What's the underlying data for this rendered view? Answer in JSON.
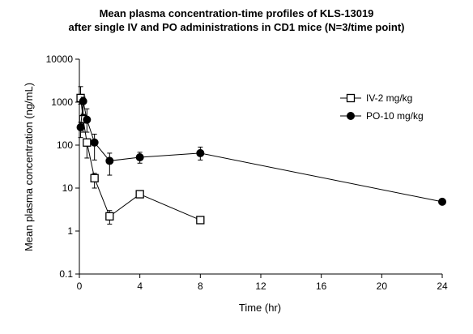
{
  "chart_data": {
    "type": "scatter",
    "title": [
      "Mean plasma concentration-time profiles of KLS-13019",
      "after single IV and PO administrations in CD1 mice (N=3/time point)"
    ],
    "xlabel": "Time (hr)",
    "ylabel": "Mean plasma concentration (ng/mL)",
    "xlim": [
      0,
      24
    ],
    "ylim": [
      0.1,
      10000
    ],
    "yscale": "log",
    "xticks": [
      0,
      4,
      8,
      12,
      16,
      20,
      24
    ],
    "xtick_labels": [
      "0",
      "4",
      "8",
      "12",
      "16",
      "20",
      "24"
    ],
    "yticks": [
      0.1,
      1,
      10,
      100,
      1000,
      10000
    ],
    "ytick_labels": [
      "0.1",
      "1",
      "10",
      "100",
      "1000",
      "10000"
    ],
    "grid": false,
    "legend_position": "right",
    "series": [
      {
        "name": "IV-2 mg/kg",
        "marker": "open-square",
        "color": "#000000",
        "x": [
          0.083,
          0.25,
          0.5,
          1,
          2,
          4,
          8
        ],
        "y": [
          1250,
          400,
          115,
          17,
          2.2,
          7.2,
          1.8
        ],
        "err_low": [
          900,
          200,
          50,
          10,
          1.45,
          6.3,
          1.75
        ],
        "err_high": [
          2300,
          520,
          135,
          22,
          3.0,
          8.0,
          1.9
        ]
      },
      {
        "name": "PO-10 mg/kg",
        "marker": "filled-circle",
        "color": "#000000",
        "x": [
          0.083,
          0.25,
          0.5,
          1,
          2,
          4,
          8,
          24
        ],
        "y": [
          260,
          1050,
          390,
          115,
          43,
          52,
          65,
          4.8
        ],
        "err_low": [
          150,
          500,
          200,
          45,
          20,
          38,
          45,
          4.6
        ],
        "err_high": [
          340,
          1300,
          700,
          180,
          65,
          68,
          90,
          5.0
        ]
      }
    ]
  }
}
